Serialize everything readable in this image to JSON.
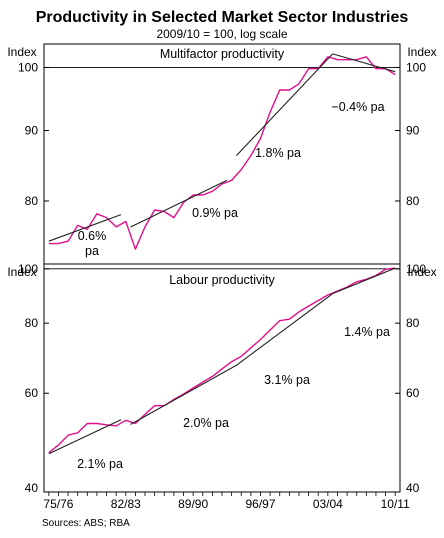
{
  "chart_data": {
    "type": "line",
    "title": "Productivity in Selected Market Sector Industries",
    "subtitle": "2009/10 = 100, log scale",
    "source": "Sources: ABS; RBA",
    "x_tick_labels": [
      "75/76",
      "82/83",
      "89/90",
      "96/97",
      "03/04",
      "10/11"
    ],
    "panels": [
      {
        "title": "Multifactor productivity",
        "unit_label": "Index",
        "y_ticks": [
          80,
          90,
          100
        ],
        "ylim": [
          72,
          104
        ],
        "series": {
          "x": [
            1974,
            1975,
            1976,
            1977,
            1978,
            1979,
            1980,
            1981,
            1982,
            1983,
            1984,
            1985,
            1986,
            1987,
            1988,
            1989,
            1990,
            1991,
            1992,
            1993,
            1994,
            1995,
            1996,
            1997,
            1998,
            1999,
            2000,
            2001,
            2002,
            2003,
            2004,
            2005,
            2006,
            2007,
            2008,
            2009,
            2010
          ],
          "values": [
            74.5,
            74.5,
            74.8,
            76.8,
            76.3,
            78.3,
            77.8,
            76.6,
            77.3,
            73.8,
            76.6,
            78.8,
            78.6,
            77.8,
            79.8,
            80.8,
            80.8,
            81.3,
            82.3,
            82.8,
            84.3,
            86.3,
            88.8,
            92.8,
            96.3,
            96.3,
            97.3,
            99.8,
            99.8,
            101.8,
            101.3,
            101.3,
            101.3,
            101.8,
            99.8,
            99.8,
            98.8
          ]
        },
        "trends": [
          {
            "label": "0.6% pa",
            "x": [
              1974,
              1981.5
            ],
            "values": [
              74.8,
              78.2
            ]
          },
          {
            "label": "0.9% pa",
            "x": [
              1982.5,
              1992.5
            ],
            "values": [
              76.6,
              82.8
            ]
          },
          {
            "label": "1.8% pa",
            "x": [
              1993.5,
              2003.5
            ],
            "values": [
              86.3,
              102.3
            ]
          },
          {
            "label": "−0.4% pa",
            "x": [
              2003.5,
              2010
            ],
            "values": [
              102.3,
              99.3
            ]
          }
        ]
      },
      {
        "title": "Labour productivity",
        "unit_label": "Index",
        "y_ticks": [
          40,
          60,
          80,
          100
        ],
        "ylim": [
          40,
          102
        ],
        "series": {
          "x": [
            1974,
            1975,
            1976,
            1977,
            1978,
            1979,
            1980,
            1981,
            1982,
            1983,
            1984,
            1985,
            1986,
            1987,
            1988,
            1989,
            1990,
            1991,
            1992,
            1993,
            1994,
            1995,
            1996,
            1997,
            1998,
            1999,
            2000,
            2001,
            2002,
            2003,
            2004,
            2005,
            2006,
            2007,
            2008,
            2009,
            2010
          ],
          "values": [
            47,
            48.5,
            50.5,
            51,
            53,
            53,
            52.7,
            52.5,
            53.7,
            53,
            55,
            57,
            57,
            58.5,
            59.8,
            61.3,
            62.8,
            64.3,
            66.3,
            68.3,
            69.8,
            72.3,
            74.8,
            77.8,
            80.8,
            81.3,
            83.8,
            85.8,
            87.8,
            89.8,
            91.3,
            92.8,
            94.8,
            95.8,
            97.3,
            99.8,
            100.3
          ]
        },
        "trends": [
          {
            "label": "2.1% pa",
            "x": [
              1974,
              1981.5
            ],
            "values": [
              46.8,
              53.8
            ]
          },
          {
            "label": "2.0% pa",
            "x": [
              1982.5,
              1993.5
            ],
            "values": [
              52.8,
              67.3
            ]
          },
          {
            "label": "3.1% pa",
            "x": [
              1993.5,
              2003.5
            ],
            "values": [
              67.3,
              90.3
            ]
          },
          {
            "label": "1.4% pa",
            "x": [
              2003.5,
              2010
            ],
            "values": [
              90.3,
              100.3
            ]
          }
        ]
      }
    ]
  }
}
